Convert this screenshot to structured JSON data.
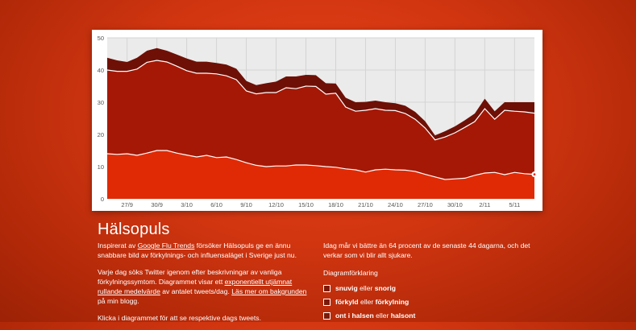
{
  "page": {
    "title": "Hälsopuls",
    "intro": {
      "t1": "Inspirerat av ",
      "link1": "Google Flu Trends",
      "t2": " försöker Hälsopuls ge en ännu snabbare bild av förkylnings- och influensaläget i Sverige just nu."
    },
    "method": {
      "t1": "Varje dag söks Twitter igenom efter beskrivningar av vanliga förkylningssymtom. Diagrammet visar ett ",
      "link1": "exponentiellt utjämnat rullande medelvärde",
      "t2": " av antalet tweets/dag. ",
      "link2": "Läs mer om bakgrunden",
      "t3": " på min blogg."
    },
    "click_hint": "Klicka i diagrammet för att se respektive dags tweets.",
    "status": "Idag mår vi bättre än 64 procent av de senaste 44 dagarna, och det verkar som vi blir allt sjukare.",
    "legend": {
      "title": "Diagramförklaring",
      "items": [
        {
          "a": "snuvig",
          "mid": " eller ",
          "b": "snorig",
          "color": "#e02a06"
        },
        {
          "a": "förkyld",
          "mid": " eller ",
          "b": "förkylning",
          "color": "#a51806"
        },
        {
          "a": "ont i halsen",
          "mid": " eller ",
          "b": "halsont",
          "color": "#6e1006"
        }
      ]
    }
  },
  "chart_data": {
    "type": "area",
    "stacked": true,
    "x_tick_labels": [
      "27/9",
      "30/9",
      "3/10",
      "6/10",
      "9/10",
      "12/10",
      "15/10",
      "18/10",
      "21/10",
      "24/10",
      "27/10",
      "30/10",
      "2/11",
      "5/11"
    ],
    "x_tick_index": [
      2,
      5,
      8,
      11,
      14,
      17,
      20,
      23,
      26,
      29,
      32,
      35,
      38,
      41
    ],
    "ylim": [
      0,
      50
    ],
    "yticks": [
      0,
      10,
      20,
      30,
      40,
      50
    ],
    "grid": true,
    "series": [
      {
        "name": "snuvig eller snorig",
        "color": "#e02a06",
        "values": [
          14,
          13.8,
          14,
          13.5,
          14.2,
          15,
          15,
          14.2,
          13.6,
          13,
          13.5,
          12.8,
          13,
          12.2,
          11.2,
          10.4,
          10,
          10.2,
          10.2,
          10.5,
          10.5,
          10.3,
          10,
          9.8,
          9.3,
          9,
          8.3,
          9,
          9.2,
          9,
          8.9,
          8.5,
          7.6,
          6.8,
          6,
          6.2,
          6.4,
          7.3,
          8,
          8.2,
          7.5,
          8.2,
          7.8,
          7.6
        ]
      },
      {
        "name": "förkyld eller förkylning",
        "color": "#a51806",
        "values": [
          26,
          25.8,
          25.6,
          26.8,
          28.2,
          28,
          27.5,
          27,
          26.2,
          26,
          25.5,
          26,
          25.2,
          24.8,
          22.3,
          22.2,
          23,
          22.8,
          24.3,
          23.7,
          24.5,
          24.6,
          22.5,
          23,
          19.2,
          18.2,
          19.2,
          19,
          18.3,
          18.4,
          17.6,
          16.2,
          14.4,
          11.5,
          13.2,
          14.3,
          15.8,
          16.7,
          20,
          16.5,
          20,
          19,
          19.2,
          19
        ]
      },
      {
        "name": "ont i halsen eller halsont",
        "color": "#6e1006",
        "values": [
          3.8,
          3.4,
          2.9,
          3.5,
          3.6,
          3.8,
          3.5,
          3.6,
          3.8,
          3.6,
          3.6,
          3.4,
          3.5,
          3.4,
          3.1,
          2.7,
          2.9,
          3.4,
          3.5,
          3.8,
          3.5,
          3.5,
          3.4,
          3,
          2.9,
          2.8,
          2.6,
          2.5,
          2.5,
          2.3,
          2.4,
          2.3,
          2.1,
          1.4,
          1.8,
          2,
          2.2,
          2.5,
          3.1,
          2.5,
          2.5,
          2.8,
          3,
          3.4
        ]
      }
    ]
  }
}
